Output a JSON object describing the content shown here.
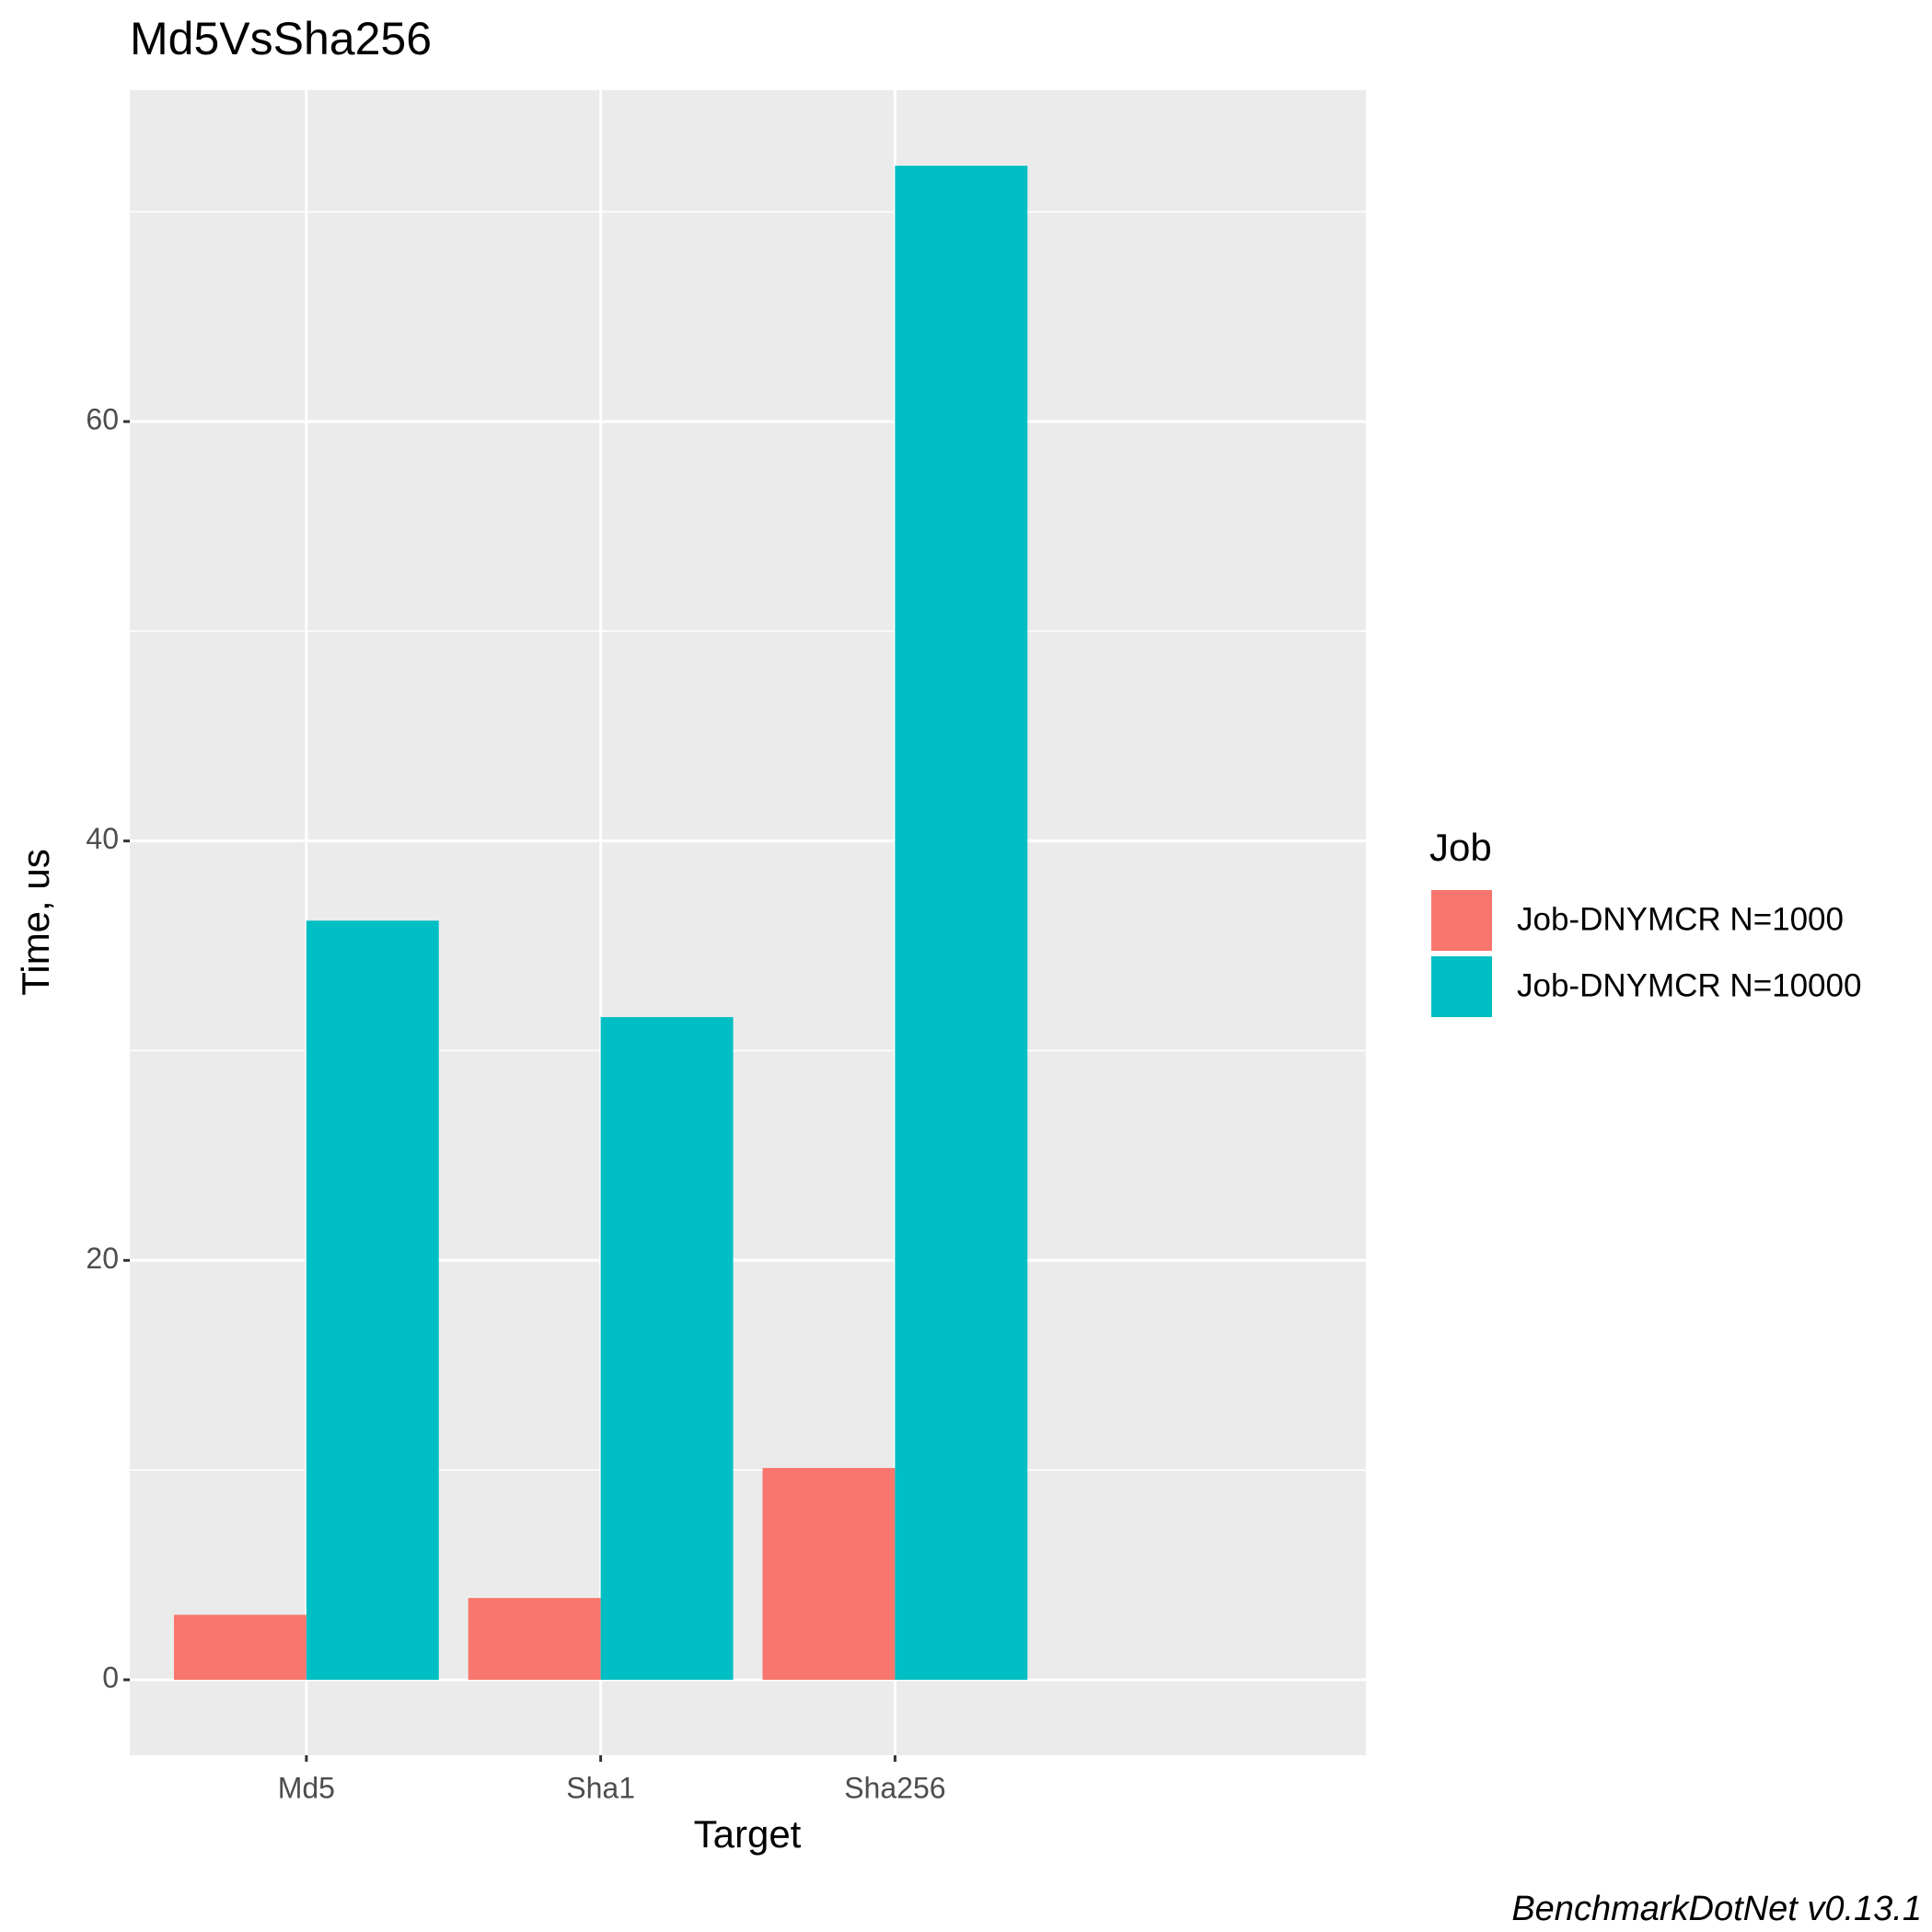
{
  "chart_data": {
    "type": "bar",
    "title": "Md5VsSha256",
    "categories": [
      "Md5",
      "Sha1",
      "Sha256"
    ],
    "series": [
      {
        "name": "Job-DNYMCR N=1000",
        "color": "#F8766D",
        "values": [
          3.1,
          3.9,
          10.1
        ]
      },
      {
        "name": "Job-DNYMCR N=10000",
        "color": "#00BFC4",
        "values": [
          36.2,
          31.6,
          72.2
        ]
      }
    ],
    "ylim": [
      -3.6,
      75.8
    ],
    "yticks": [
      0,
      20,
      40,
      60
    ],
    "minor_yticks": [
      10,
      30,
      50,
      70
    ],
    "xlabel": "Target",
    "ylabel": "Time, us",
    "legend_title": "Job",
    "caption": "BenchmarkDotNet v0.13.1",
    "grid": true
  }
}
